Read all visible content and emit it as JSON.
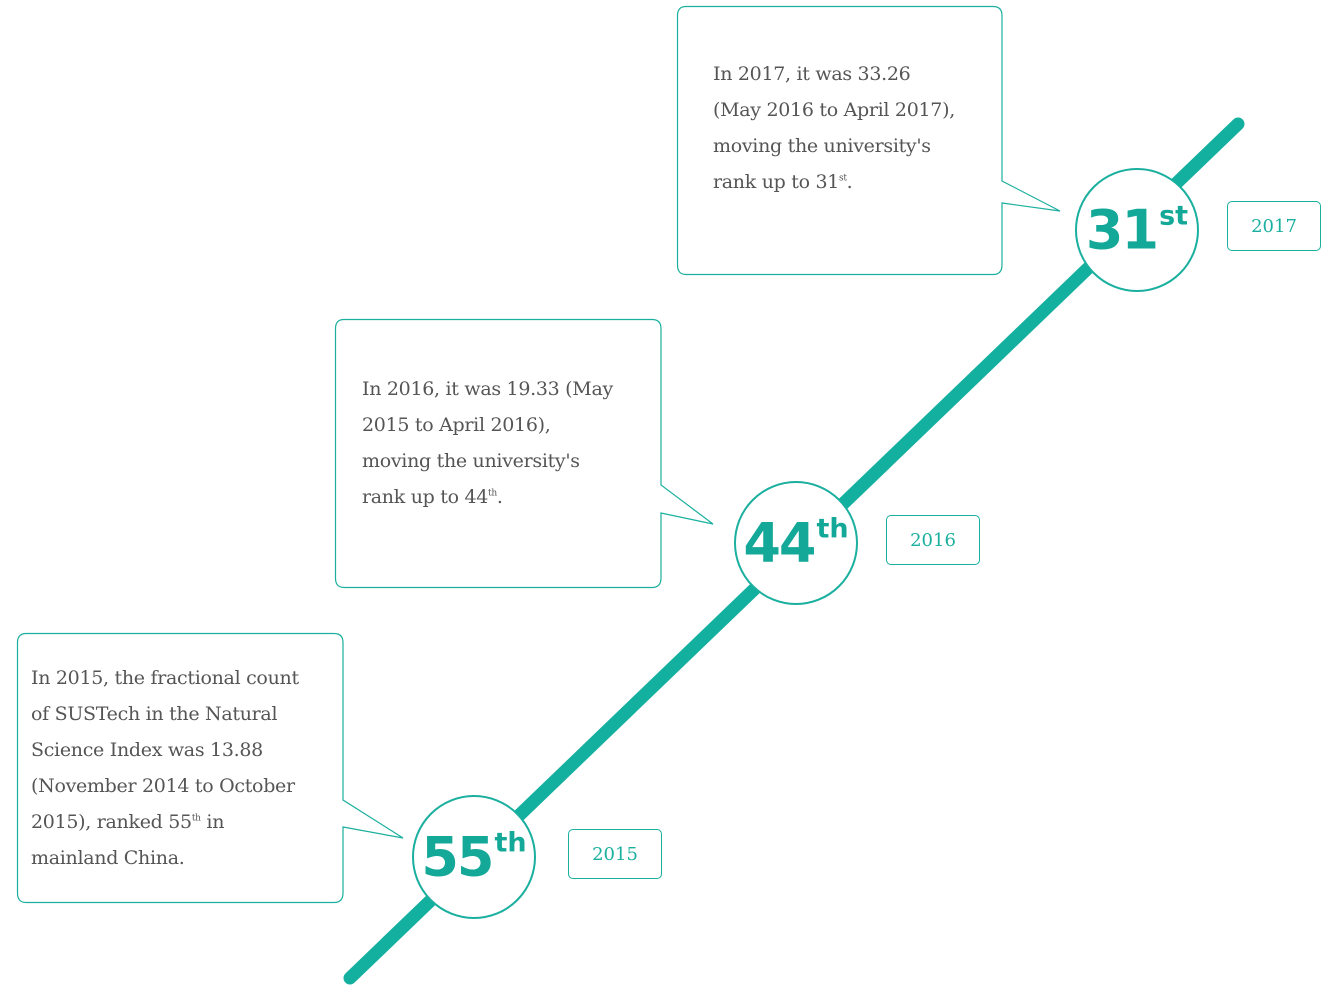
{
  "colors": {
    "accent": "#1aaf9e",
    "text": "#555555"
  },
  "milestones": [
    {
      "year": "2015",
      "rank_number": "55",
      "rank_suffix": "th",
      "text": {
        "l1": "In 2015, the fractional count",
        "l2": "of SUSTech in the Natural",
        "l3": "Science Index was 13.88",
        "l4": "(November 2014 to October",
        "l5a": "2015), ranked 55",
        "l5sup": "th",
        "l5b": " in",
        "l6": "mainland China."
      }
    },
    {
      "year": "2016",
      "rank_number": "44",
      "rank_suffix": "th",
      "text": {
        "l1": "In 2016, it was 19.33 (May",
        "l2": "2015 to April 2016),",
        "l3": "moving the university's",
        "l4a": "rank up to 44",
        "l4sup": "th",
        "l4b": "."
      }
    },
    {
      "year": "2017",
      "rank_number": "31",
      "rank_suffix": "st",
      "text": {
        "l1": "In 2017, it was 33.26",
        "l2": "(May 2016 to April 2017),",
        "l3": "moving the university's",
        "l4a": "rank up to 31",
        "l4sup": "st",
        "l4b": "."
      }
    }
  ]
}
